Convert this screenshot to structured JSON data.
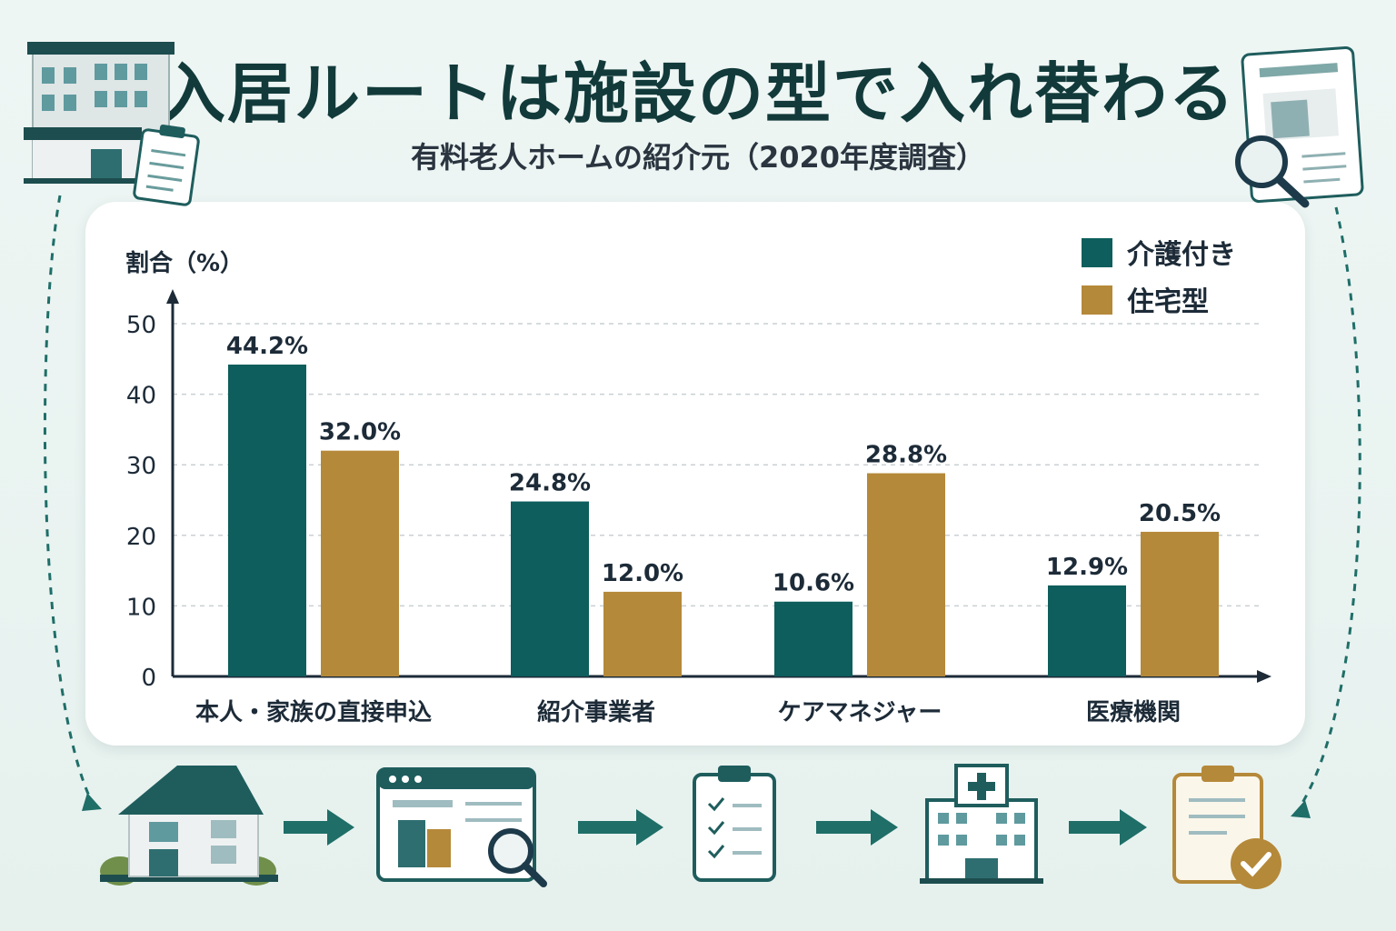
{
  "title": "入居ルートは施設の型で入れ替わる",
  "subtitle": "有料老人ホームの紹介元（2020年度調査）",
  "chart_data": {
    "type": "bar",
    "ylabel": "割合（%）",
    "ylim": [
      0,
      50
    ],
    "yticks": [
      0,
      10,
      20,
      30,
      40,
      50
    ],
    "grid": true,
    "legend_position": "top-right",
    "categories": [
      "本人・家族の直接申込",
      "紹介事業者",
      "ケアマネジャー",
      "医療機関"
    ],
    "series": [
      {
        "name": "介護付き",
        "color": "#0d5e5c",
        "values": [
          44.2,
          24.8,
          10.6,
          12.9
        ],
        "labels": [
          "44.2%",
          "24.8%",
          "10.6%",
          "12.9%"
        ]
      },
      {
        "name": "住宅型",
        "color": "#b5893a",
        "values": [
          32.0,
          12.0,
          28.8,
          20.5
        ],
        "labels": [
          "32.0%",
          "12.0%",
          "28.8%",
          "20.5%"
        ]
      }
    ]
  },
  "icons": [
    "office-building-icon",
    "clipboard-icon",
    "document-search-icon",
    "house-icon",
    "web-search-icon",
    "checklist-icon",
    "hospital-icon",
    "approved-document-icon",
    "arrow-right-icon",
    "dashed-arrow-icon"
  ],
  "colors": {
    "teal": "#0d5e5c",
    "gold": "#b5893a",
    "navy": "#1d3245"
  }
}
